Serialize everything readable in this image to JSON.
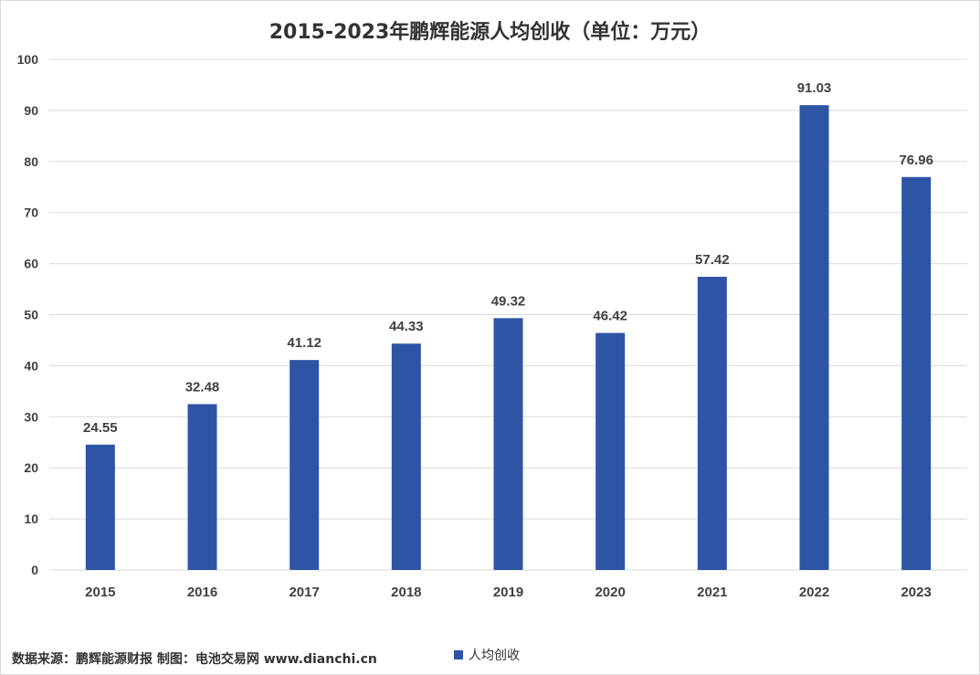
{
  "chart_data": {
    "type": "bar",
    "title": "2015-2023年鹏辉能源人均创收（单位：万元）",
    "categories": [
      "2015",
      "2016",
      "2017",
      "2018",
      "2019",
      "2020",
      "2021",
      "2022",
      "2023"
    ],
    "series": [
      {
        "name": "人均创收",
        "values": [
          24.55,
          32.48,
          41.12,
          44.33,
          49.32,
          46.42,
          57.42,
          91.03,
          76.96
        ],
        "labels": [
          "24.55",
          "32.48",
          "41.12",
          "44.33",
          "49.32",
          "46.42",
          "57.42",
          "91.03",
          "76.96"
        ]
      }
    ],
    "ylim": [
      0,
      100
    ],
    "yticks": [
      0,
      10,
      20,
      30,
      40,
      50,
      60,
      70,
      80,
      90,
      100
    ],
    "grid": true,
    "legend_position": "bottom",
    "bar_color": "#2E55A5"
  },
  "footer": {
    "source": "数据来源：鹏辉能源财报  制图：电池交易网 www.dianchi.cn"
  }
}
